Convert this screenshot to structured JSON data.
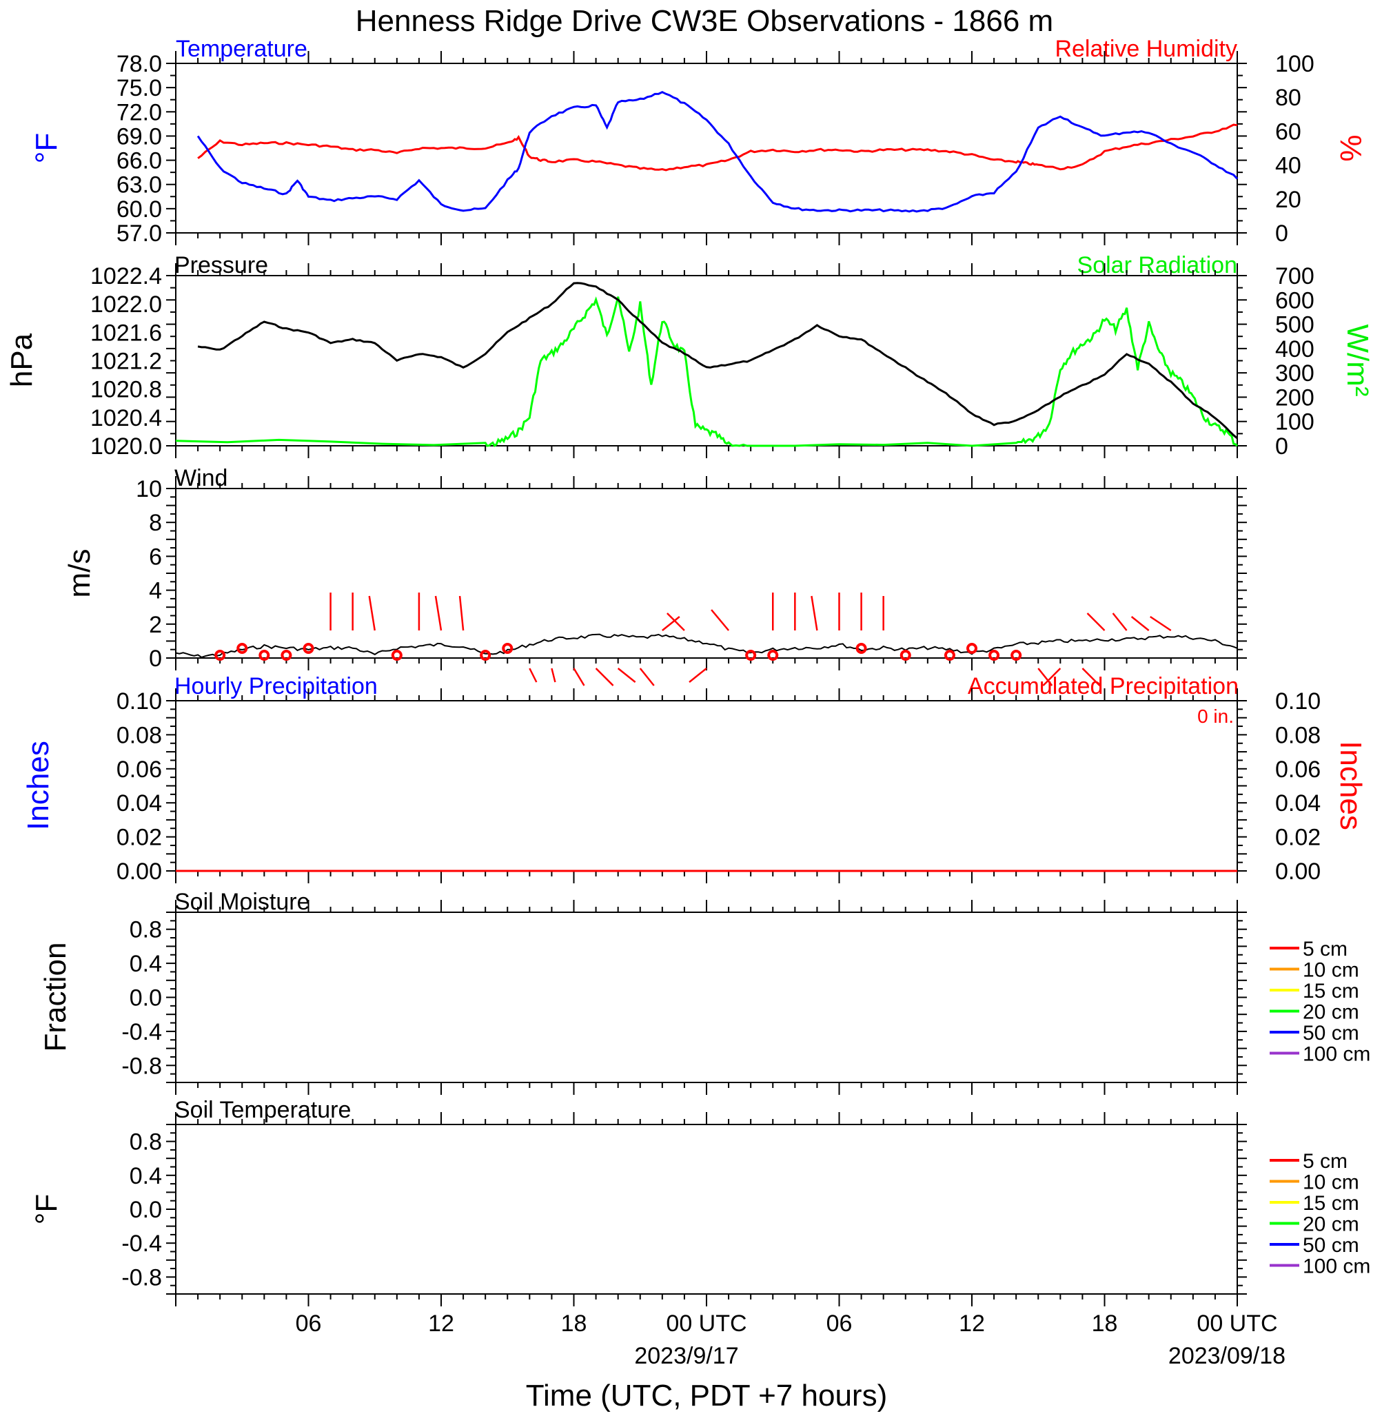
{
  "title": "Henness Ridge Drive CW3E Observations - 1866 m",
  "x_axis": {
    "title": "Time (UTC, PDT +7 hours)",
    "tick_labels": [
      "06",
      "12",
      "18",
      "00 UTC",
      "06",
      "12",
      "18",
      "00 UTC"
    ],
    "date_labels": [
      "2023/9/17",
      "2023/09/18"
    ]
  },
  "colors": {
    "temperature": "#0000ff",
    "humidity": "#ff0000",
    "pressure": "#000000",
    "solar": "#00ff00",
    "wind": "#000000",
    "barb": "#ff0000",
    "hourly_precip": "#0000ff",
    "accum_precip": "#ff0000"
  },
  "panels": {
    "temp_rh": {
      "left_title": "Temperature",
      "right_title": "Relative Humidity",
      "left_unit": "°F",
      "right_unit": "%",
      "left_ticks": [
        "78.0",
        "75.0",
        "72.0",
        "69.0",
        "66.0",
        "63.0",
        "60.0",
        "57.0"
      ],
      "right_ticks": [
        "100",
        "80",
        "60",
        "40",
        "20",
        "0"
      ]
    },
    "pressure_solar": {
      "left_title": "Pressure",
      "right_title": "Solar Radiation",
      "left_unit": "hPa",
      "right_unit": "W/m²",
      "left_ticks": [
        "1022.4",
        "1022.0",
        "1021.6",
        "1021.2",
        "1020.8",
        "1020.4",
        "1020.0"
      ],
      "right_ticks": [
        "700",
        "600",
        "500",
        "400",
        "300",
        "200",
        "100",
        "0"
      ]
    },
    "wind": {
      "left_title": "Wind",
      "left_unit": "m/s",
      "left_ticks": [
        "10",
        "8",
        "6",
        "4",
        "2",
        "0"
      ]
    },
    "precip": {
      "left_title": "Hourly Precipitation",
      "right_title": "Accumulated Precipitation",
      "accum_total": "0 in.",
      "left_unit": "Inches",
      "right_unit": "Inches",
      "left_ticks": [
        "0.10",
        "0.08",
        "0.06",
        "0.04",
        "0.02",
        "0.00"
      ],
      "right_ticks": [
        "0.10",
        "0.08",
        "0.06",
        "0.04",
        "0.02",
        "0.00"
      ]
    },
    "soil_moisture": {
      "left_title": "Soil Moisture",
      "left_unit": "Fraction",
      "left_ticks": [
        "0.8",
        "0.4",
        "0.0",
        "-0.4",
        "-0.8"
      ],
      "legend": [
        {
          "label": "5 cm",
          "color": "#ff0000"
        },
        {
          "label": "10 cm",
          "color": "#ff9900"
        },
        {
          "label": "15 cm",
          "color": "#ffff00"
        },
        {
          "label": "20 cm",
          "color": "#00ff00"
        },
        {
          "label": "50 cm",
          "color": "#0000ff"
        },
        {
          "label": "100 cm",
          "color": "#9933cc"
        }
      ]
    },
    "soil_temp": {
      "left_title": "Soil Temperature",
      "left_unit": "°F",
      "left_ticks": [
        "0.8",
        "0.4",
        "0.0",
        "-0.4",
        "-0.8"
      ],
      "legend": [
        {
          "label": "5 cm",
          "color": "#ff0000"
        },
        {
          "label": "10 cm",
          "color": "#ff9900"
        },
        {
          "label": "15 cm",
          "color": "#ffff00"
        },
        {
          "label": "20 cm",
          "color": "#00ff00"
        },
        {
          "label": "50 cm",
          "color": "#0000ff"
        },
        {
          "label": "100 cm",
          "color": "#9933cc"
        }
      ]
    }
  },
  "chart_data": [
    {
      "type": "line",
      "title": "Temperature",
      "ylabel": "°F",
      "ylim": [
        57,
        78
      ],
      "x_hours": [
        1,
        2,
        3,
        4,
        5,
        5.5,
        6,
        7,
        8,
        9,
        10,
        11,
        12,
        13,
        14,
        15,
        15.5,
        16,
        17,
        18,
        19,
        19.5,
        20,
        21,
        22,
        23,
        24,
        25,
        26,
        27,
        28,
        29,
        30,
        31,
        32,
        33,
        34,
        35,
        36,
        37,
        38,
        39,
        40,
        41,
        42,
        43,
        44,
        45,
        46,
        47,
        48
      ],
      "series": [
        {
          "name": "Temperature",
          "values": [
            69,
            65,
            63.2,
            62.5,
            61.8,
            63.5,
            61.5,
            61,
            61.3,
            61.5,
            61.2,
            63.5,
            60.5,
            59.8,
            60,
            63.5,
            65,
            69.5,
            71.5,
            72.5,
            72.8,
            70,
            73.2,
            73.5,
            74.5,
            73,
            71,
            68,
            64,
            60.8,
            60,
            59.8,
            59.8,
            59.8,
            59.8,
            59.7,
            59.8,
            60.2,
            61.5,
            62,
            64.5,
            70,
            71.5,
            70,
            69,
            69.5,
            69.5,
            68,
            67,
            65.5,
            63.8
          ]
        }
      ]
    },
    {
      "type": "line",
      "title": "Relative Humidity",
      "ylabel": "%",
      "ylim": [
        0,
        100
      ],
      "x_hours": [
        1,
        2,
        3,
        4,
        5,
        6,
        7,
        8,
        9,
        10,
        11,
        12,
        13,
        14,
        15,
        15.5,
        16,
        16.5,
        17,
        18,
        19,
        20,
        21,
        22,
        23,
        24,
        25,
        26,
        27,
        28,
        29,
        30,
        31,
        32,
        33,
        34,
        35,
        36,
        37,
        38,
        38.5,
        39,
        40,
        41,
        42,
        43,
        44,
        45,
        46,
        47,
        48
      ],
      "series": [
        {
          "name": "Relative Humidity",
          "values": [
            44,
            54,
            52,
            53,
            53,
            52,
            51,
            49,
            49,
            47,
            50,
            50,
            50,
            50,
            53,
            56,
            45,
            43,
            42,
            43,
            42,
            40,
            38,
            37,
            39,
            40,
            43,
            48,
            49,
            48,
            49,
            49,
            48,
            49,
            49,
            49,
            48,
            46,
            43,
            42,
            41,
            40,
            38,
            40,
            48,
            51,
            53,
            55,
            57,
            60,
            64
          ]
        }
      ]
    },
    {
      "type": "line",
      "title": "Pressure",
      "ylabel": "hPa",
      "ylim": [
        1020.0,
        1022.4
      ],
      "x_hours": [
        1,
        2,
        3,
        4,
        5,
        6,
        7,
        8,
        9,
        10,
        11,
        12,
        13,
        14,
        15,
        16,
        17,
        18,
        19,
        20,
        21,
        22,
        23,
        24,
        25,
        26,
        27,
        28,
        29,
        30,
        31,
        32,
        33,
        34,
        35,
        36,
        37,
        38,
        39,
        40,
        41,
        42,
        43,
        44,
        45,
        46,
        47,
        48
      ],
      "series": [
        {
          "name": "Pressure",
          "values": [
            1021.4,
            1021.35,
            1021.55,
            1021.75,
            1021.65,
            1021.6,
            1021.45,
            1021.5,
            1021.45,
            1021.2,
            1021.3,
            1021.25,
            1021.1,
            1021.3,
            1021.6,
            1021.8,
            1022.0,
            1022.3,
            1022.25,
            1022.05,
            1021.75,
            1021.45,
            1021.3,
            1021.1,
            1021.15,
            1021.2,
            1021.35,
            1021.5,
            1021.7,
            1021.55,
            1021.5,
            1021.3,
            1021.1,
            1020.9,
            1020.7,
            1020.45,
            1020.3,
            1020.35,
            1020.5,
            1020.7,
            1020.85,
            1021.0,
            1021.3,
            1021.15,
            1020.9,
            1020.6,
            1020.4,
            1020.1
          ]
        }
      ]
    },
    {
      "type": "line",
      "title": "Solar Radiation",
      "ylabel": "W/m²",
      "ylim": [
        0,
        700
      ],
      "x_hours": [
        0,
        14,
        14.5,
        15,
        15.5,
        16,
        16.5,
        17,
        17.5,
        18,
        18.5,
        19,
        19.5,
        20,
        20.5,
        21,
        21.5,
        22,
        22.5,
        23,
        23.5,
        24,
        24.5,
        25,
        26,
        38,
        38.5,
        39,
        39.5,
        40,
        40.5,
        41,
        41.5,
        42,
        42.5,
        43,
        43.5,
        44,
        44.5,
        45,
        45.5,
        46,
        46.5,
        47,
        47.5,
        48
      ],
      "series": [
        {
          "name": "Solar Radiation",
          "values": [
            20,
            0,
            10,
            30,
            60,
            120,
            350,
            380,
            420,
            480,
            540,
            600,
            450,
            620,
            380,
            580,
            250,
            520,
            420,
            380,
            80,
            60,
            40,
            0,
            0,
            0,
            20,
            40,
            90,
            320,
            380,
            420,
            450,
            520,
            480,
            560,
            320,
            500,
            380,
            300,
            260,
            200,
            120,
            80,
            60,
            0
          ]
        }
      ]
    },
    {
      "type": "line",
      "title": "Wind",
      "ylabel": "m/s",
      "ylim": [
        0,
        10
      ],
      "x_hours": [
        0,
        1,
        2,
        3,
        4,
        5,
        6,
        7,
        8,
        9,
        10,
        11,
        12,
        13,
        14,
        15,
        16,
        17,
        18,
        19,
        20,
        21,
        22,
        23,
        24,
        25,
        26,
        27,
        28,
        29,
        30,
        31,
        32,
        33,
        34,
        35,
        36,
        37,
        38,
        39,
        40,
        41,
        42,
        43,
        44,
        45,
        46,
        47,
        48
      ],
      "series": [
        {
          "name": "Wind",
          "values": [
            0.3,
            0.1,
            0.2,
            0.5,
            0.7,
            0.6,
            0.5,
            0.6,
            0.6,
            0.2,
            0.6,
            0.7,
            0.8,
            0.7,
            0.2,
            0.4,
            0.8,
            1.1,
            1.2,
            1.3,
            1.3,
            1.2,
            1.3,
            1.1,
            0.9,
            0.5,
            0.3,
            0.5,
            0.6,
            0.6,
            0.8,
            0.5,
            0.6,
            0.5,
            0.6,
            0.5,
            0.3,
            0.5,
            0.8,
            0.9,
            1.0,
            1.0,
            1.1,
            1.1,
            1.2,
            1.3,
            1.2,
            1.0,
            0.6
          ]
        }
      ]
    },
    {
      "type": "line",
      "title": "Hourly Precipitation",
      "ylabel": "Inches",
      "ylim": [
        0,
        0.1
      ],
      "x": [
        0,
        48
      ],
      "series": [
        {
          "name": "Hourly Precipitation",
          "values": [
            0,
            0
          ]
        },
        {
          "name": "Accumulated Precipitation",
          "values": [
            0,
            0
          ]
        }
      ]
    },
    {
      "type": "line",
      "title": "Soil Moisture",
      "ylabel": "Fraction",
      "ylim": [
        -1,
        1
      ],
      "series": []
    },
    {
      "type": "line",
      "title": "Soil Temperature",
      "ylabel": "°F",
      "ylim": [
        -1,
        1
      ],
      "series": []
    }
  ]
}
